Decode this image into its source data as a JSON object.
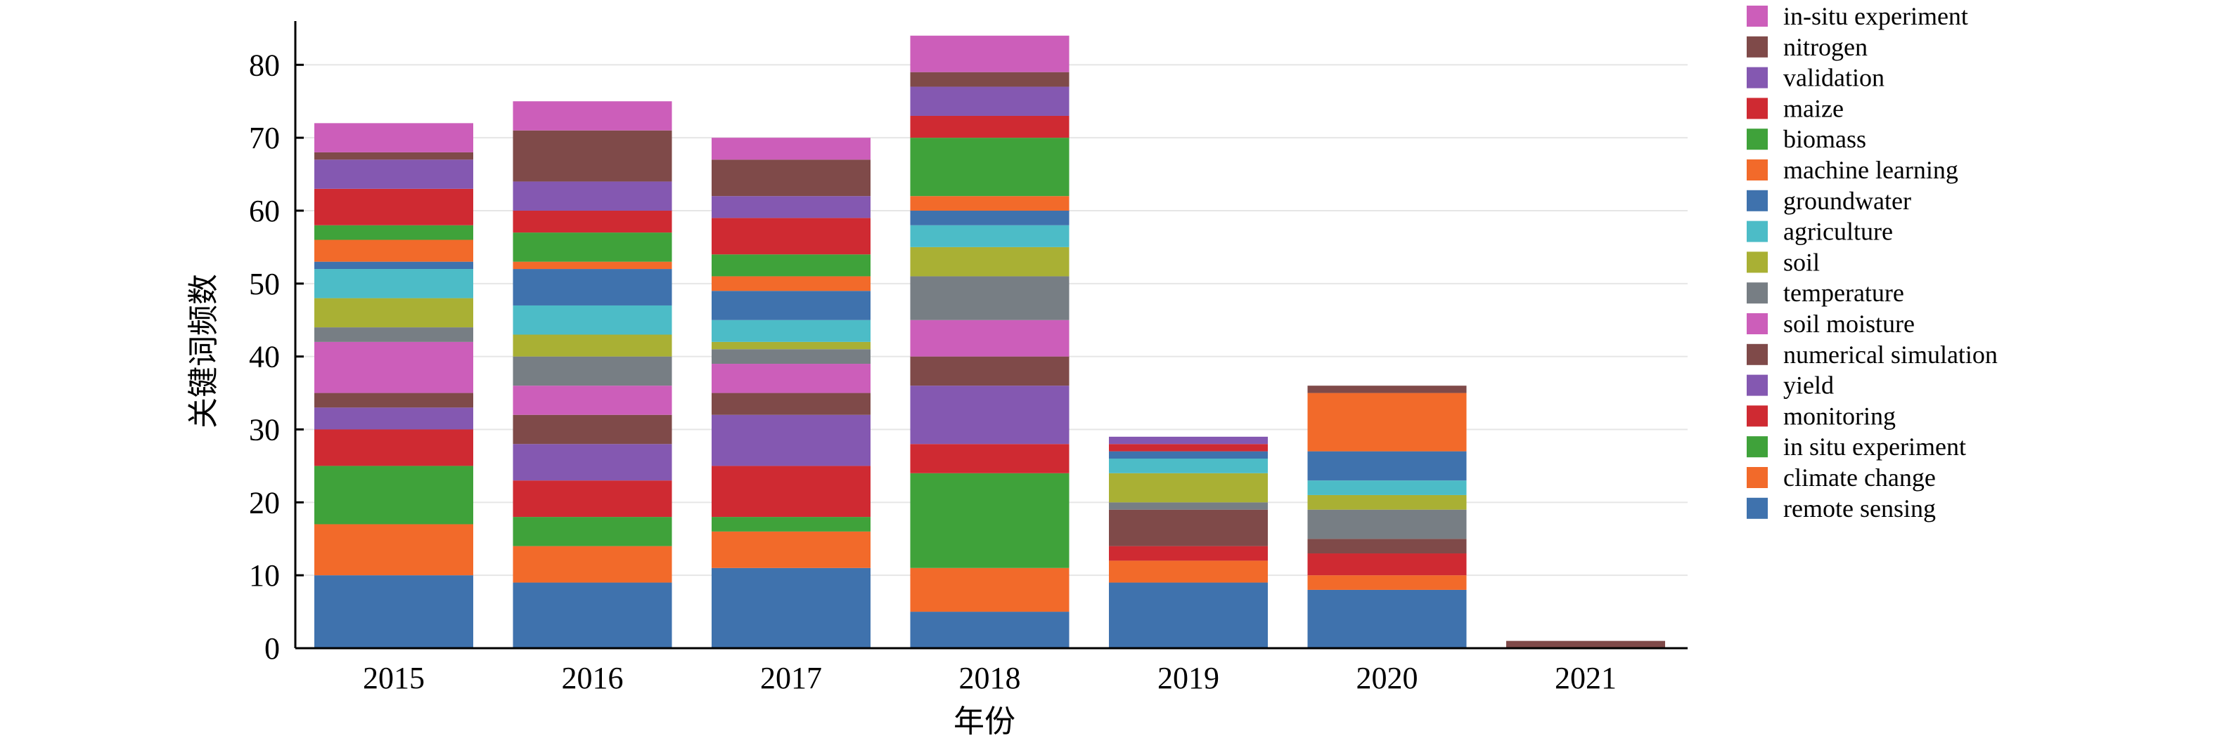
{
  "chart_data": {
    "type": "bar",
    "stacked": true,
    "title": "",
    "xlabel": "年份",
    "ylabel": "关键词频数",
    "ylim": [
      0,
      86
    ],
    "yticks": [
      0,
      10,
      20,
      30,
      40,
      50,
      60,
      70,
      80
    ],
    "grid": true,
    "legend_position": "right",
    "categories": [
      "2015",
      "2016",
      "2017",
      "2018",
      "2019",
      "2020",
      "2021"
    ],
    "series": [
      {
        "name": "remote sensing",
        "color": "#3f72ad",
        "values": [
          10,
          9,
          11,
          5,
          9,
          8,
          0
        ]
      },
      {
        "name": "climate change",
        "color": "#f26a2a",
        "values": [
          7,
          5,
          5,
          6,
          3,
          2,
          0
        ]
      },
      {
        "name": "in situ experiment",
        "color": "#3fa23a",
        "values": [
          8,
          4,
          2,
          13,
          0,
          0,
          0
        ]
      },
      {
        "name": "monitoring",
        "color": "#cf2a32",
        "values": [
          5,
          5,
          7,
          4,
          2,
          3,
          0
        ]
      },
      {
        "name": "yield",
        "color": "#8458b1",
        "values": [
          3,
          5,
          7,
          8,
          0,
          0,
          0
        ]
      },
      {
        "name": "numerical simulation",
        "color": "#7f4a49",
        "values": [
          2,
          4,
          3,
          4,
          5,
          2,
          0
        ]
      },
      {
        "name": "soil moisture",
        "color": "#cc5eba",
        "values": [
          7,
          4,
          4,
          5,
          0,
          0,
          0
        ]
      },
      {
        "name": "temperature",
        "color": "#777e84",
        "values": [
          2,
          4,
          2,
          6,
          1,
          4,
          0
        ]
      },
      {
        "name": "soil",
        "color": "#a9b034",
        "values": [
          4,
          3,
          1,
          4,
          4,
          2,
          0
        ]
      },
      {
        "name": "agriculture",
        "color": "#4cbcc7",
        "values": [
          4,
          4,
          3,
          3,
          2,
          2,
          0
        ]
      },
      {
        "name": "groundwater",
        "color": "#3f72ad",
        "values": [
          1,
          5,
          4,
          2,
          1,
          4,
          0
        ]
      },
      {
        "name": "machine learning",
        "color": "#f26a2a",
        "values": [
          3,
          1,
          2,
          2,
          0,
          8,
          0
        ]
      },
      {
        "name": "biomass",
        "color": "#3fa23a",
        "values": [
          2,
          4,
          3,
          8,
          0,
          0,
          0
        ]
      },
      {
        "name": "maize",
        "color": "#cf2a32",
        "values": [
          5,
          3,
          5,
          3,
          1,
          0,
          0
        ]
      },
      {
        "name": "validation",
        "color": "#8458b1",
        "values": [
          4,
          4,
          3,
          4,
          1,
          0,
          0
        ]
      },
      {
        "name": "nitrogen",
        "color": "#7f4a49",
        "values": [
          1,
          7,
          5,
          2,
          0,
          1,
          1
        ]
      },
      {
        "name": "in-situ experiment",
        "color": "#cc5eba",
        "values": [
          4,
          4,
          3,
          5,
          0,
          0,
          0
        ]
      }
    ]
  }
}
